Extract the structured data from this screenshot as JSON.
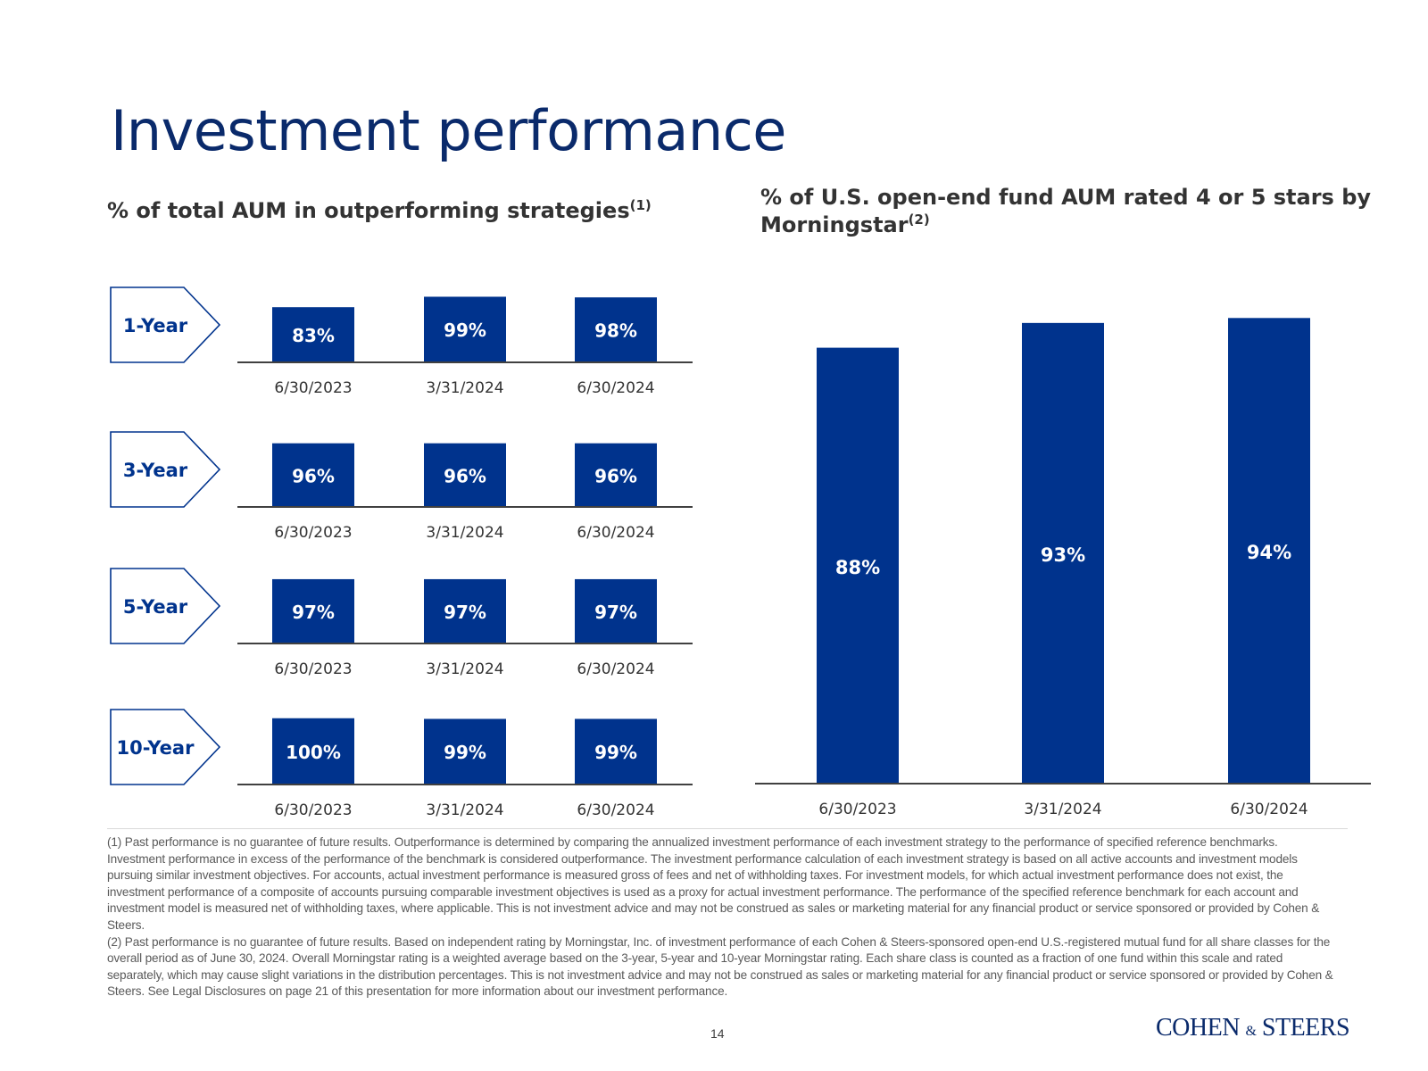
{
  "title": "Investment performance",
  "left_subtitle": {
    "text": "% of total AUM in outperforming strategies",
    "note": "(1)"
  },
  "right_subtitle": {
    "text": "% of U.S. open-end fund AUM rated 4 or 5 stars by Morningstar",
    "note": "(2)"
  },
  "colors": {
    "bar": "#00338d",
    "title": "#0a2a6b",
    "text": "#333333",
    "axis": "#404040"
  },
  "chart_data": [
    {
      "type": "bar",
      "title": "% of total AUM in outperforming strategies",
      "categories": [
        "6/30/2023",
        "3/31/2024",
        "6/30/2024"
      ],
      "series": [
        {
          "name": "1-Year",
          "values": [
            83,
            99,
            98
          ],
          "labels": [
            "83%",
            "99%",
            "98%"
          ]
        },
        {
          "name": "3-Year",
          "values": [
            96,
            96,
            96
          ],
          "labels": [
            "96%",
            "96%",
            "96%"
          ]
        },
        {
          "name": "5-Year",
          "values": [
            97,
            97,
            97
          ],
          "labels": [
            "97%",
            "97%",
            "97%"
          ]
        },
        {
          "name": "10-Year",
          "values": [
            100,
            99,
            99
          ],
          "labels": [
            "100%",
            "99%",
            "99%"
          ]
        }
      ],
      "ylim": [
        0,
        100
      ]
    },
    {
      "type": "bar",
      "title": "% of U.S. open-end fund AUM rated 4 or 5 stars by Morningstar",
      "categories": [
        "6/30/2023",
        "3/31/2024",
        "6/30/2024"
      ],
      "values": [
        88,
        93,
        94
      ],
      "labels": [
        "88%",
        "93%",
        "94%"
      ],
      "ylim": [
        0,
        100
      ]
    }
  ],
  "footnotes": [
    "(1) Past performance is no guarantee of future results. Outperformance is determined by comparing the annualized investment performance of each investment strategy to the performance of specified reference benchmarks. Investment performance in excess of the performance of the benchmark is considered outperformance. The investment performance calculation of each investment strategy is based on all active accounts and investment models pursuing similar investment objectives. For accounts, actual investment performance is measured gross of fees and net of withholding taxes. For investment models, for which actual investment performance does not exist, the investment performance of a composite of accounts pursuing comparable investment objectives is used as a proxy for actual investment performance. The performance of the specified reference benchmark for each account and investment model is measured net of withholding taxes, where applicable. This is not investment advice and may not be construed as sales or marketing material for any financial product or service sponsored or provided by Cohen & Steers.",
    "(2) Past performance is no guarantee of future results. Based on independent rating by Morningstar, Inc. of investment performance of each Cohen & Steers-sponsored open-end U.S.-registered mutual fund for all share classes for the overall period as of June 30, 2024. Overall Morningstar rating is a weighted average based on the 3-year, 5-year and 10-year Morningstar rating. Each share class is counted as a fraction of one fund within this scale and rated separately, which may cause slight variations in the distribution percentages. This is not investment advice and may not be construed as sales or marketing material for any financial product or service sponsored or provided by Cohen & Steers. See Legal Disclosures on page 21 of this presentation for more information about our investment performance."
  ],
  "page_number": "14",
  "logo": {
    "part1": "COHEN",
    "amp": "&",
    "part2": "STEERS"
  }
}
